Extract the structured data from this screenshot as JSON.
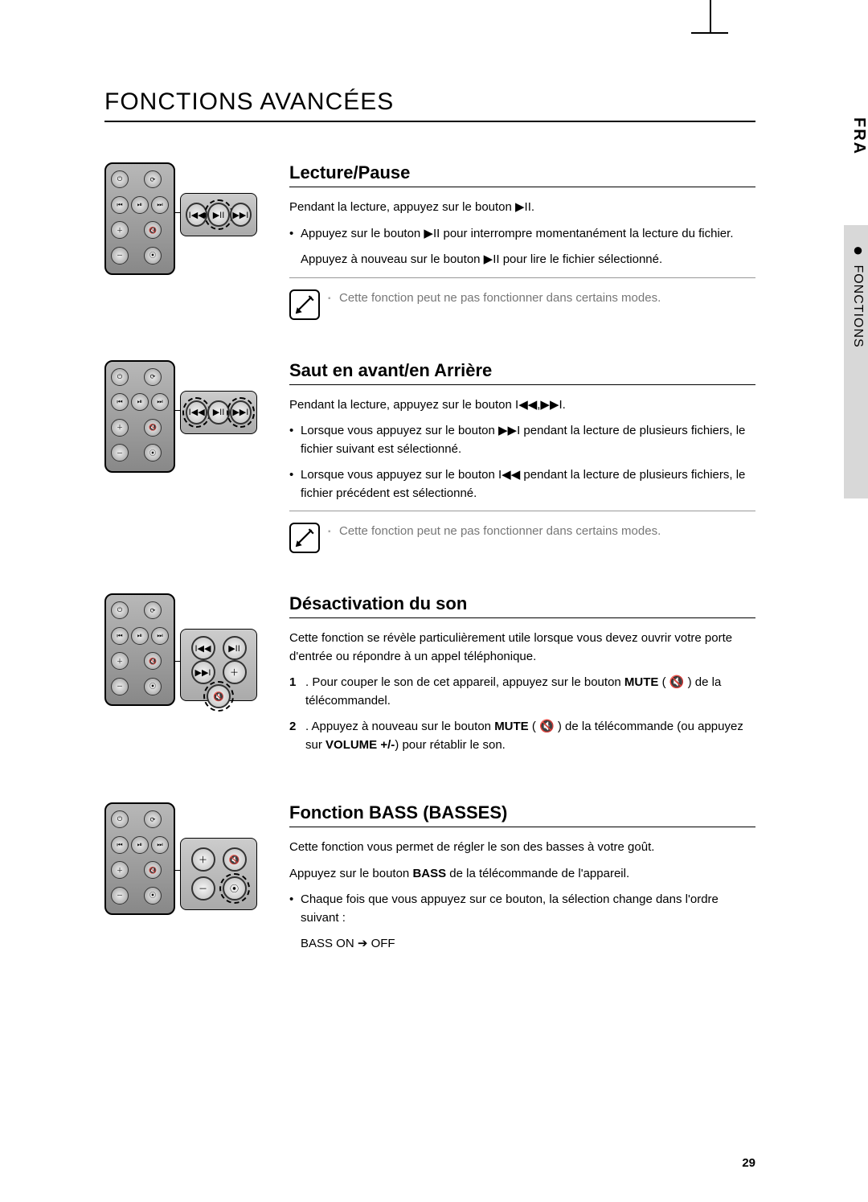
{
  "page_number": "29",
  "side_label_lang": "FRA",
  "side_label_section": "FONCTIONS",
  "page_title": "FONCTIONS AVANCÉES",
  "icons": {
    "play_pause": "▶II",
    "prev": "I◀◀",
    "next": "▶▶I",
    "mute": "🔇",
    "arrow": "➔"
  },
  "sections": [
    {
      "title": "Lecture/Pause",
      "intro": "Pendant la lecture, appuyez sur le bouton ▶II.",
      "bullets": [
        "Appuyez sur le bouton ▶II pour interrompre momentanément la lecture du fichier."
      ],
      "after": "Appuyez à nouveau sur le bouton ▶II pour lire le fichier sélectionné.",
      "note": "Cette fonction peut ne pas fonctionner dans certains modes.",
      "callout": {
        "buttons": [
          "I◀◀",
          "▶II",
          "▶▶I"
        ],
        "highlight": [
          1
        ]
      }
    },
    {
      "title": "Saut en avant/en Arrière",
      "intro": "Pendant la lecture, appuyez sur le bouton I◀◀,▶▶I.",
      "bullets": [
        "Lorsque vous appuyez sur le bouton ▶▶I pendant la lecture de plusieurs fichiers, le fichier suivant est sélectionné.",
        "Lorsque vous appuyez sur le bouton I◀◀ pendant la lecture de plusieurs fichiers, le fichier précédent est sélectionné."
      ],
      "note": "Cette fonction peut ne pas fonctionner dans certains modes.",
      "callout": {
        "buttons": [
          "I◀◀",
          "▶II",
          "▶▶I"
        ],
        "highlight": [
          0,
          2
        ]
      }
    },
    {
      "title": "Désactivation du son",
      "intro": "Cette fonction se révèle particulièrement utile lorsque vous devez ouvrir votre porte d'entrée ou répondre à un appel téléphonique.",
      "ol": [
        {
          "n": "1",
          "html": "Pour couper le son de cet appareil, appuyez sur le bouton <b>MUTE</b> ( 🔇 ) de la télécommandel."
        },
        {
          "n": "2",
          "html": "Appuyez à nouveau sur le bouton <b>MUTE</b> ( 🔇 ) de la télécommande (ou appuyez sur <b>VOLUME +/-</b>) pour rétablir le son."
        }
      ],
      "callout": {
        "tall": true,
        "buttons": [
          "I◀◀",
          "▶II",
          "▶▶I",
          "＋",
          "🔇"
        ],
        "highlight": [
          4
        ]
      }
    },
    {
      "title": "Fonction BASS (BASSES)",
      "intro": "Cette fonction vous permet de régler le son des basses à votre goût.",
      "line2_html": "Appuyez sur le bouton <b>BASS</b> de la télécommande de l'appareil.",
      "bullets": [
        "Chaque fois que vous appuyez sur ce bouton, la sélection change dans l'ordre suivant :"
      ],
      "after": "BASS ON ➔ OFF",
      "callout": {
        "tall": true,
        "buttons": [
          "＋",
          "🔇",
          "－",
          "⦿"
        ],
        "highlight": [
          3
        ]
      }
    }
  ]
}
